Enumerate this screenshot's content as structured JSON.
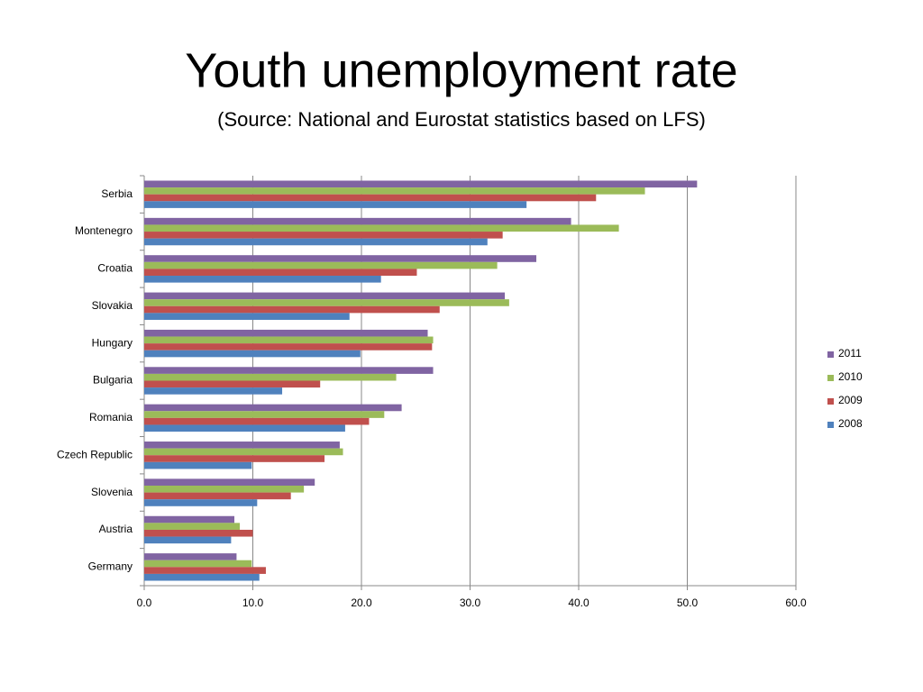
{
  "chart_data": {
    "type": "hbar",
    "title": "Youth unemployment rate",
    "subtitle": "(Source: National and Eurostat statistics based on LFS)",
    "categories": [
      "Serbia",
      "Montenegro",
      "Croatia",
      "Slovakia",
      "Hungary",
      "Bulgaria",
      "Romania",
      "Czech Republic",
      "Slovenia",
      "Austria",
      "Germany"
    ],
    "series": [
      {
        "name": "2011",
        "color": "#8064a2",
        "values": [
          50.9,
          39.3,
          36.1,
          33.2,
          26.1,
          26.6,
          23.7,
          18.0,
          15.7,
          8.3,
          8.5
        ]
      },
      {
        "name": "2010",
        "color": "#9bbb59",
        "values": [
          46.1,
          43.7,
          32.5,
          33.6,
          26.6,
          23.2,
          22.1,
          18.3,
          14.7,
          8.8,
          9.9
        ]
      },
      {
        "name": "2009",
        "color": "#c0504d",
        "values": [
          41.6,
          33.0,
          25.1,
          27.2,
          26.5,
          16.2,
          20.7,
          16.6,
          13.5,
          10.0,
          11.2
        ]
      },
      {
        "name": "2008",
        "color": "#4f81bd",
        "values": [
          35.2,
          31.6,
          21.8,
          18.9,
          19.9,
          12.7,
          18.5,
          9.9,
          10.4,
          8.0,
          10.6
        ]
      }
    ],
    "xlim": [
      0,
      60
    ],
    "xticks": [
      {
        "value": 0,
        "label": "0.0"
      },
      {
        "value": 10,
        "label": "10.0"
      },
      {
        "value": 20,
        "label": "20.0"
      },
      {
        "value": 30,
        "label": "30.0"
      },
      {
        "value": 40,
        "label": "40.0"
      },
      {
        "value": 50,
        "label": "50.0"
      },
      {
        "value": 60,
        "label": "60.0"
      }
    ],
    "grid": true,
    "legend": "right"
  }
}
